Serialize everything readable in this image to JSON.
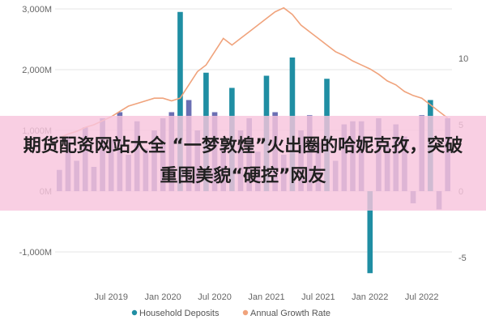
{
  "chart_data": {
    "type": "bar+line",
    "series": [
      {
        "name": "Household Deposits",
        "type": "bar",
        "axis": "left",
        "color": "#6a6fb3",
        "highlight_color": "#1f8ea3",
        "x": [
          "2019-01",
          "2019-02",
          "2019-03",
          "2019-04",
          "2019-05",
          "2019-06",
          "2019-07",
          "2019-08",
          "2019-09",
          "2019-10",
          "2019-11",
          "2019-12",
          "2020-01",
          "2020-02",
          "2020-03",
          "2020-04",
          "2020-05",
          "2020-06",
          "2020-07",
          "2020-08",
          "2020-09",
          "2020-10",
          "2020-11",
          "2020-12",
          "2021-01",
          "2021-02",
          "2021-03",
          "2021-04",
          "2021-05",
          "2021-06",
          "2021-07",
          "2021-08",
          "2021-09",
          "2021-10",
          "2021-11",
          "2021-12",
          "2022-01",
          "2022-02",
          "2022-03",
          "2022-04",
          "2022-05",
          "2022-06",
          "2022-07",
          "2022-08",
          "2022-09",
          "2022-10"
        ],
        "values": [
          350,
          900,
          500,
          1050,
          400,
          1200,
          850,
          1300,
          600,
          1150,
          700,
          1000,
          1200,
          1300,
          2950,
          1500,
          1000,
          1950,
          1300,
          750,
          1700,
          1000,
          1200,
          650,
          1900,
          1300,
          600,
          2200,
          1000,
          1250,
          800,
          1850,
          500,
          1100,
          1150,
          1150,
          -1350,
          1200,
          800,
          1100,
          900,
          -200,
          1250,
          1500,
          -300,
          1200
        ],
        "highlight_indices": [
          14,
          17,
          20,
          24,
          27,
          31,
          36,
          43
        ]
      },
      {
        "name": "Annual Growth Rate",
        "type": "line",
        "axis": "right",
        "color": "#f0a37c",
        "x": [
          "2019-01",
          "2019-02",
          "2019-03",
          "2019-04",
          "2019-05",
          "2019-06",
          "2019-07",
          "2019-08",
          "2019-09",
          "2019-10",
          "2019-11",
          "2019-12",
          "2020-01",
          "2020-02",
          "2020-03",
          "2020-04",
          "2020-05",
          "2020-06",
          "2020-07",
          "2020-08",
          "2020-09",
          "2020-10",
          "2020-11",
          "2020-12",
          "2021-01",
          "2021-02",
          "2021-03",
          "2021-04",
          "2021-05",
          "2021-06",
          "2021-07",
          "2021-08",
          "2021-09",
          "2021-10",
          "2021-11",
          "2021-12",
          "2022-01",
          "2022-02",
          "2022-03",
          "2022-04",
          "2022-05",
          "2022-06",
          "2022-07",
          "2022-08",
          "2022-09",
          "2022-10"
        ],
        "values": [
          4,
          4.3,
          4.5,
          4.8,
          5,
          5.3,
          5.6,
          6,
          6.4,
          6.6,
          6.8,
          7,
          7,
          6.8,
          7,
          8,
          9,
          9.5,
          10.5,
          11.5,
          11,
          11.5,
          12,
          12.5,
          13,
          13.5,
          13.8,
          13.3,
          12.5,
          12,
          11.5,
          11,
          10.5,
          10.2,
          9.8,
          9.5,
          9.2,
          8.8,
          8.3,
          8,
          7.5,
          7.2,
          7,
          6.5,
          6,
          5.5
        ]
      }
    ],
    "y_left": {
      "ylim": [
        -1500,
        3000
      ],
      "ticks": [
        -1000,
        0,
        1000,
        2000,
        3000
      ],
      "tick_labels": [
        "-1,000M",
        "0M",
        "1,000M",
        "2,000M",
        "3,000M"
      ]
    },
    "y_right": {
      "ylim": [
        -7,
        14
      ],
      "ticks": [
        -5,
        0,
        5,
        10
      ],
      "tick_labels": [
        "-5",
        "0",
        "5",
        "10"
      ]
    },
    "x_tick_labels": [
      {
        "x": "2019-07",
        "label": "Jul 2019"
      },
      {
        "x": "2020-01",
        "label": "Jan 2020"
      },
      {
        "x": "2020-07",
        "label": "Jul 2020"
      },
      {
        "x": "2021-01",
        "label": "Jan 2021"
      },
      {
        "x": "2021-07",
        "label": "Jul 2021"
      },
      {
        "x": "2022-01",
        "label": "Jan 2022"
      },
      {
        "x": "2022-07",
        "label": "Jul 2022"
      }
    ],
    "legend": {
      "placement": "bottom-center",
      "items": [
        {
          "label": "Household Deposits",
          "color": "#1f8ea3"
        },
        {
          "label": "Annual Growth Rate",
          "color": "#f0a37c"
        }
      ]
    },
    "title": "",
    "grid": true
  },
  "overlay": {
    "text": "期货配资网站大全 “一梦敦煌”火出圈的哈妮克孜，突破重围美貌“硬控”网友",
    "background": "#f8c4dd"
  }
}
